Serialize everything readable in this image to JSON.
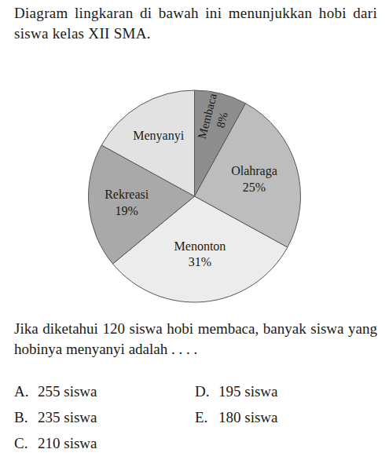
{
  "intro": "Diagram lingkaran di bawah ini menunjukkan hobi dari siswa kelas XII SMA.",
  "chart_data": {
    "type": "pie",
    "categories": [
      "Membaca",
      "Olahraga",
      "Menonton",
      "Rekreasi",
      "Menyanyi"
    ],
    "values": [
      8,
      25,
      31,
      19,
      17
    ],
    "value_labels": [
      "8%",
      "25%",
      "31%",
      "19%",
      null
    ],
    "colors": [
      "#8e8e8e",
      "#bdbdbd",
      "#ececec",
      "#a9a9a9",
      "#e2e2e2"
    ],
    "data_labels": true
  },
  "question": "Jika diketahui 120 siswa hobi membaca, banyak siswa yang hobinya menyanyi adalah . . . .",
  "options": [
    {
      "letter": "A.",
      "text": "255 siswa"
    },
    {
      "letter": "B.",
      "text": "235 siswa"
    },
    {
      "letter": "C.",
      "text": "210 siswa"
    },
    {
      "letter": "D.",
      "text": "195 siswa"
    },
    {
      "letter": "E.",
      "text": "180 siswa"
    }
  ]
}
